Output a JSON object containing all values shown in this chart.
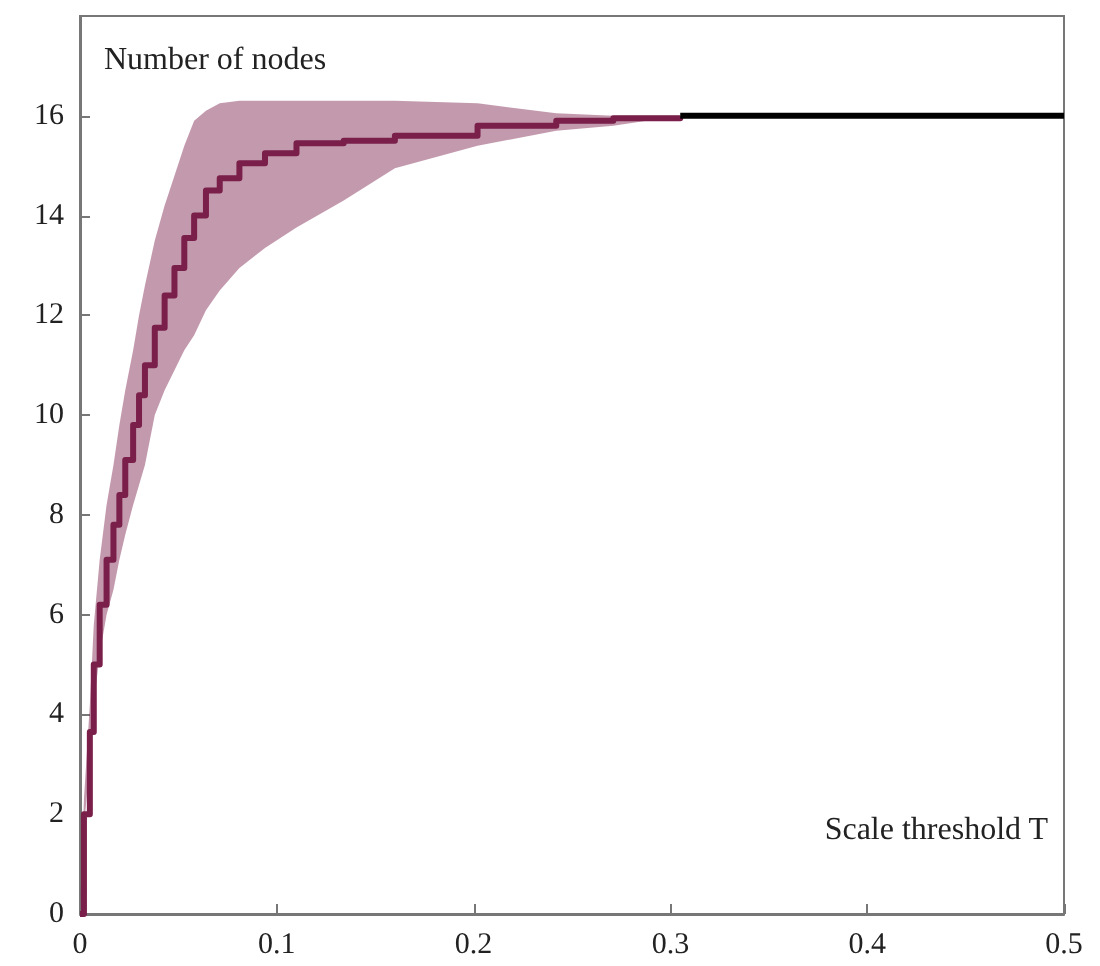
{
  "chart_data": {
    "type": "step",
    "xlabel": "Scale threshold T",
    "ylabel": "Number of nodes",
    "xlim": [
      0,
      0.5
    ],
    "xticks": [
      0,
      0.1,
      0.2,
      0.3,
      0.4,
      0.5
    ],
    "ylim": [
      0,
      18
    ],
    "yticks": [
      0,
      2,
      4,
      6,
      8,
      10,
      12,
      14,
      16
    ],
    "grid": false,
    "marker": "none",
    "line_style": "solid",
    "series": [
      {
        "color": "#7a1e4a",
        "x": [
          0,
          0.002,
          0.005,
          0.007,
          0.01,
          0.0135,
          0.017,
          0.02,
          0.023,
          0.027,
          0.03,
          0.033,
          0.038,
          0.043,
          0.048,
          0.053,
          0.058,
          0.064,
          0.071,
          0.081,
          0.094,
          0.11,
          0.134,
          0.16,
          0.202,
          0.242,
          0.271,
          0.305
        ],
        "values": [
          0,
          2.0,
          3.65,
          5.0,
          6.2,
          7.1,
          7.8,
          8.4,
          9.1,
          9.8,
          10.4,
          11.0,
          11.75,
          12.4,
          12.95,
          13.55,
          14.0,
          14.5,
          14.75,
          15.05,
          15.25,
          15.45,
          15.5,
          15.6,
          15.8,
          15.9,
          15.95,
          16.0
        ],
        "upper": [
          0,
          2.3,
          4.2,
          5.8,
          7.1,
          8.2,
          9.0,
          9.8,
          10.5,
          11.3,
          12.0,
          12.6,
          13.5,
          14.2,
          14.8,
          15.4,
          15.9,
          16.1,
          16.25,
          16.3,
          16.3,
          16.3,
          16.3,
          16.3,
          16.25,
          16.05,
          16.0,
          16.0
        ],
        "lower": [
          0,
          1.7,
          3.1,
          4.2,
          5.2,
          6.0,
          6.5,
          7.1,
          7.6,
          8.2,
          8.6,
          9.0,
          10.0,
          10.5,
          10.9,
          11.3,
          11.6,
          12.1,
          12.5,
          12.95,
          13.35,
          13.76,
          14.3,
          14.95,
          15.4,
          15.7,
          15.8,
          16.0
        ]
      },
      {
        "color": "#000000",
        "type": "line",
        "x": [
          0.305,
          0.5
        ],
        "values": [
          16,
          16
        ]
      }
    ]
  }
}
